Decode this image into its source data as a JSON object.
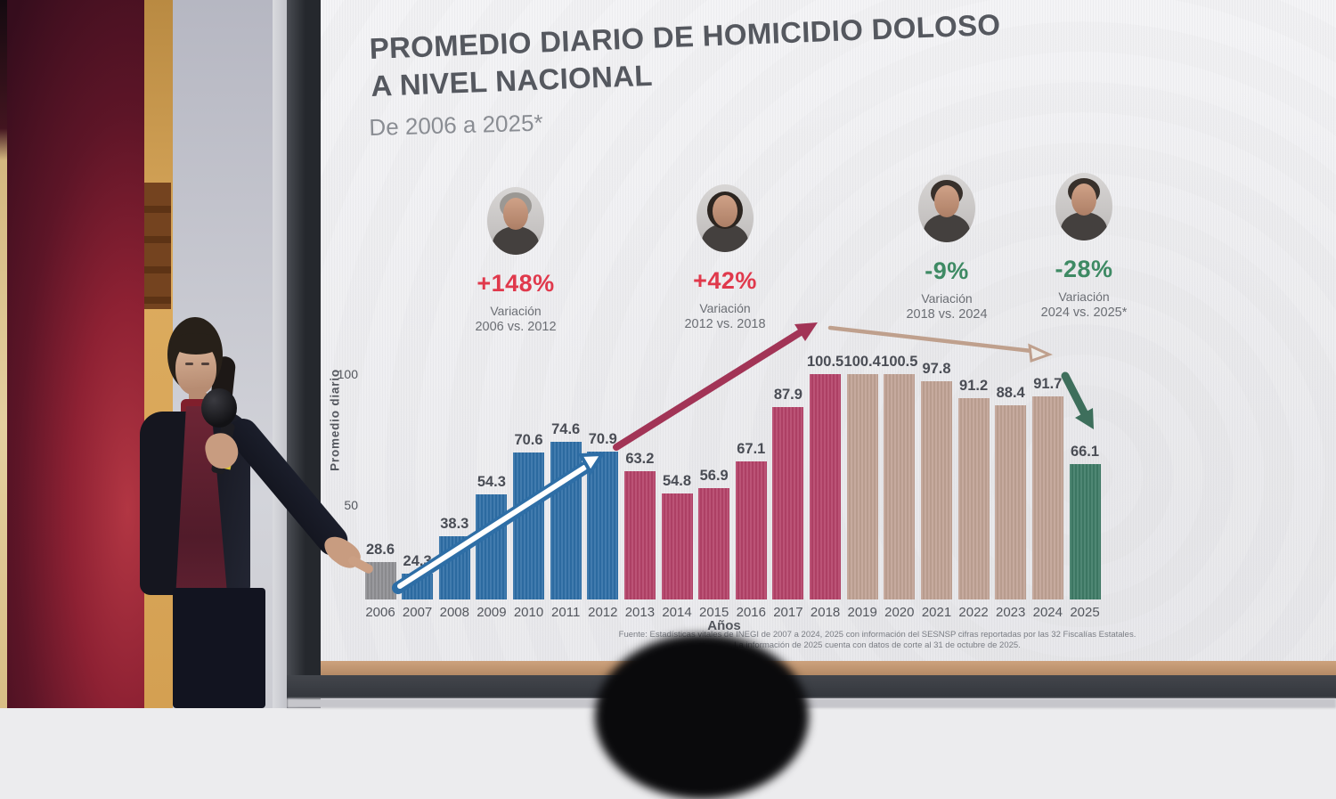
{
  "slide": {
    "title_line1": "PROMEDIO DIARIO DE HOMICIDIO DOLOSO",
    "title_line2": "A NIVEL NACIONAL",
    "subtitle": "De 2006 a 2025*",
    "source_line1": "Fuente: Estadísticas vitales de INEGI de 2007 a 2024, 2025 con información del SESNSP cifras reportadas por las 32 Fiscalías Estatales.",
    "source_line2": "La información de 2025 cuenta con datos de corte al 31 de octubre de 2025."
  },
  "periods": [
    {
      "portrait": "president-photo-calderon",
      "change": "+148%",
      "change_color": "#e0394c",
      "label": "Variación",
      "range": "2006 vs. 2012"
    },
    {
      "portrait": "president-photo-pena-nieto",
      "change": "+42%",
      "change_color": "#e0394c",
      "label": "Variación",
      "range": "2012 vs. 2018"
    },
    {
      "portrait": "president-photo-lopez-obrador",
      "change": "-9%",
      "change_color": "#3e8a64",
      "label": "Variación",
      "range": "2018 vs. 2024"
    },
    {
      "portrait": "president-photo-sheinbaum",
      "change": "-28%",
      "change_color": "#3e8a64",
      "label": "Variación",
      "range": "2024 vs. 2025*"
    }
  ],
  "chart_data": {
    "type": "bar",
    "title": "PROMEDIO DIARIO DE HOMICIDIO DOLOSO A NIVEL NACIONAL",
    "subtitle": "De 2006 a 2025*",
    "xlabel": "Años",
    "ylabel": "Promedio diario",
    "yticks": [
      50,
      100
    ],
    "ylim": [
      0,
      110
    ],
    "grid": false,
    "legend": false,
    "categories": [
      "2006",
      "2007",
      "2008",
      "2009",
      "2010",
      "2011",
      "2012",
      "2013",
      "2014",
      "2015",
      "2016",
      "2017",
      "2018",
      "2019",
      "2020",
      "2021",
      "2022",
      "2023",
      "2024",
      "2025"
    ],
    "values": [
      28.6,
      24.3,
      38.3,
      54.3,
      70.6,
      74.6,
      70.9,
      63.2,
      54.8,
      56.9,
      67.1,
      87.9,
      100.5,
      100.4,
      100.5,
      97.8,
      91.2,
      88.4,
      91.7,
      66.1
    ],
    "segments": [
      {
        "label": "2006",
        "from": 0,
        "to": 0,
        "color": "#8f8f93"
      },
      {
        "label": "2007-2012",
        "from": 1,
        "to": 6,
        "color": "#2e6ea6"
      },
      {
        "label": "2013-2018",
        "from": 7,
        "to": 12,
        "color": "#b44268"
      },
      {
        "label": "2019-2024",
        "from": 13,
        "to": 18,
        "color": "#c0a294"
      },
      {
        "label": "2025",
        "from": 19,
        "to": 19,
        "color": "#3e7b66"
      }
    ],
    "annotations": [
      {
        "type": "arrow",
        "from": "2006",
        "to": "2012",
        "trend": "up",
        "color": "#2e6ea6",
        "core": "#ffffff"
      },
      {
        "type": "arrow",
        "from": "2012",
        "to": "2018",
        "trend": "up",
        "color": "#a23456"
      },
      {
        "type": "arrow",
        "from": "2018",
        "to": "2024",
        "trend": "flat-down",
        "color": "#bfa08d"
      },
      {
        "type": "arrow",
        "from": "2024",
        "to": "2025",
        "trend": "down",
        "color": "#3e6f5c"
      }
    ]
  }
}
